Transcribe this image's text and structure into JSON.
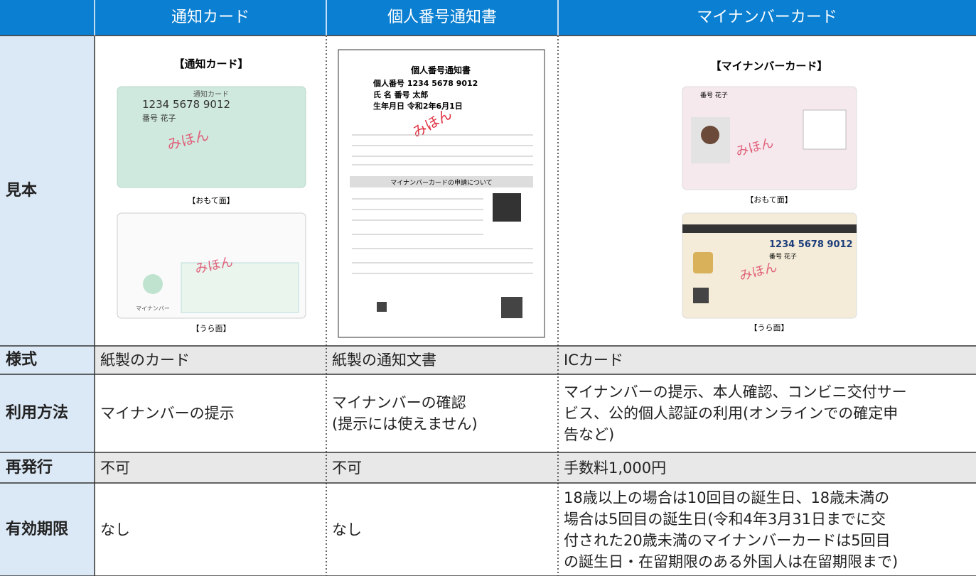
{
  "header": {
    "columns": [
      "通知カード",
      "個人番号通知書",
      "マイナンバーカード"
    ]
  },
  "samples": {
    "notice_card": {
      "title": "【通知カード】",
      "card_label": "通知カード",
      "number": "1234 5678 9012",
      "name": "番号 花子",
      "stamp": "みほん",
      "front": "【おもて面】",
      "back": "【うら面】",
      "mascot": "マイナンバー"
    },
    "notice_doc": {
      "title": "個人番号通知書",
      "number": "個人番号 1234 5678 9012",
      "name": "氏 名 番号 太郎",
      "birth": "生年月日 令和2年6月1日",
      "stamp": "みほん",
      "section": "マイナンバーカードの申請について"
    },
    "my_number_card": {
      "title": "【マイナンバーカード】",
      "name": "番号 花子",
      "number": "1234 5678 9012",
      "stamp": "みほん",
      "front": "【おもて面】",
      "back": "【うら面】"
    }
  },
  "rows": [
    {
      "label": "見本"
    },
    {
      "label": "様式",
      "cells": [
        [
          "紙製のカード"
        ],
        [
          "紙製の通知文書"
        ],
        [
          "ICカード"
        ]
      ]
    },
    {
      "label": "利用方法",
      "cells": [
        [
          "マイナンバーの提示"
        ],
        [
          "マイナンバーの確認",
          "(提示には使えません)"
        ],
        [
          "マイナンバーの提示、本人確認、コンビニ交付サー",
          "ビス、公的個人認証の利用(オンラインでの確定申",
          "告など)"
        ]
      ]
    },
    {
      "label": "再発行",
      "cells": [
        [
          "不可"
        ],
        [
          "不可"
        ],
        [
          "手数料1,000円"
        ]
      ]
    },
    {
      "label": "有効期限",
      "cells": [
        [
          "なし"
        ],
        [
          "なし"
        ],
        [
          "18歳以上の場合は10回目の誕生日、18歳未満の",
          "場合は5回目の誕生日(令和4年3月31日までに交",
          "付された20歳未満のマイナンバーカードは5回目",
          "の誕生日・在留期限のある外国人は在留期限まで)"
        ]
      ]
    }
  ]
}
